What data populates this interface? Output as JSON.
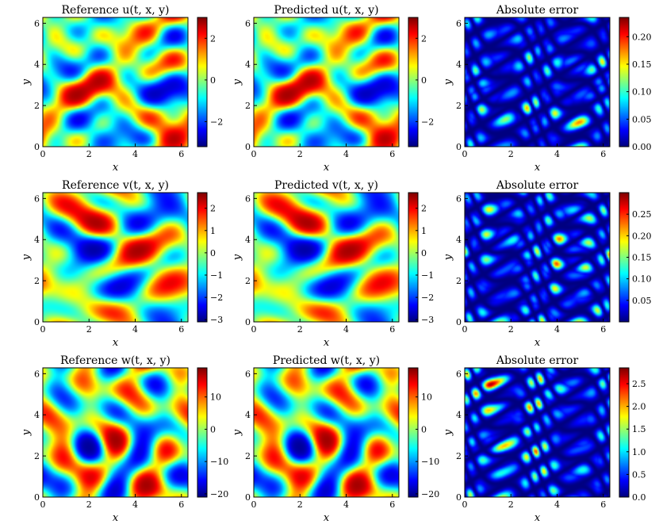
{
  "chart_data": [
    {
      "type": "heatmap",
      "title": "Reference u(t, x, y)",
      "xlabel": "x",
      "ylabel": "y",
      "xlim": [
        0,
        6.283
      ],
      "ylim": [
        0,
        6.283
      ],
      "xticks": [
        "0",
        "2",
        "4",
        "6"
      ],
      "yticks": [
        "0",
        "2",
        "4",
        "6"
      ],
      "colorbar": {
        "min": -3.2,
        "max": 3.0,
        "ticks": [
          "2",
          "0",
          "−2"
        ],
        "tick_values": [
          2,
          0,
          -2
        ]
      }
    },
    {
      "type": "heatmap",
      "title": "Predicted u(t, x, y)",
      "xlabel": "x",
      "ylabel": "y",
      "xlim": [
        0,
        6.283
      ],
      "ylim": [
        0,
        6.283
      ],
      "xticks": [
        "0",
        "2",
        "4",
        "6"
      ],
      "yticks": [
        "0",
        "2",
        "4",
        "6"
      ],
      "colorbar": {
        "min": -3.2,
        "max": 3.0,
        "ticks": [
          "2",
          "0",
          "−2"
        ],
        "tick_values": [
          2,
          0,
          -2
        ]
      }
    },
    {
      "type": "heatmap",
      "title": "Absolute error",
      "xlabel": "x",
      "ylabel": "y",
      "xlim": [
        0,
        6.283
      ],
      "ylim": [
        0,
        6.283
      ],
      "xticks": [
        "0",
        "2",
        "4",
        "6"
      ],
      "yticks": [
        "0",
        "2",
        "4",
        "6"
      ],
      "colorbar": {
        "min": 0,
        "max": 0.235,
        "ticks": [
          "0.20",
          "0.15",
          "0.10",
          "0.05",
          "0.00"
        ],
        "tick_values": [
          0.2,
          0.15,
          0.1,
          0.05,
          0.0
        ]
      }
    },
    {
      "type": "heatmap",
      "title": "Reference v(t, x, y)",
      "xlabel": "x",
      "ylabel": "y",
      "xlim": [
        0,
        6.283
      ],
      "ylim": [
        0,
        6.283
      ],
      "xticks": [
        "0",
        "2",
        "4",
        "6"
      ],
      "yticks": [
        "0",
        "2",
        "4",
        "6"
      ],
      "colorbar": {
        "min": -3.1,
        "max": 2.7,
        "ticks": [
          "2",
          "1",
          "0",
          "−1",
          "−2",
          "−3"
        ],
        "tick_values": [
          2,
          1,
          0,
          -1,
          -2,
          -3
        ]
      }
    },
    {
      "type": "heatmap",
      "title": "Predicted v(t, x, y)",
      "xlabel": "x",
      "ylabel": "y",
      "xlim": [
        0,
        6.283
      ],
      "ylim": [
        0,
        6.283
      ],
      "xticks": [
        "0",
        "2",
        "4",
        "6"
      ],
      "yticks": [
        "0",
        "2",
        "4",
        "6"
      ],
      "colorbar": {
        "min": -3.1,
        "max": 2.7,
        "ticks": [
          "2",
          "1",
          "0",
          "−1",
          "−2",
          "−3"
        ],
        "tick_values": [
          2,
          1,
          0,
          -1,
          -2,
          -3
        ]
      }
    },
    {
      "type": "heatmap",
      "title": "Absolute error",
      "xlabel": "x",
      "ylabel": "y",
      "xlim": [
        0,
        6.283
      ],
      "ylim": [
        0,
        6.283
      ],
      "xticks": [
        "0",
        "2",
        "4",
        "6"
      ],
      "yticks": [
        "0",
        "2",
        "4",
        "6"
      ],
      "colorbar": {
        "min": 0,
        "max": 0.3,
        "ticks": [
          "0.25",
          "0.20",
          "0.15",
          "0.10",
          "0.05"
        ],
        "tick_values": [
          0.25,
          0.2,
          0.15,
          0.1,
          0.05
        ]
      }
    },
    {
      "type": "heatmap",
      "title": "Reference w(t, x, y)",
      "xlabel": "x",
      "ylabel": "y",
      "xlim": [
        0,
        6.283
      ],
      "ylim": [
        0,
        6.283
      ],
      "xticks": [
        "0",
        "2",
        "4",
        "6"
      ],
      "yticks": [
        "0",
        "2",
        "4",
        "6"
      ],
      "colorbar": {
        "min": -21,
        "max": 19,
        "ticks": [
          "10",
          "0",
          "−10",
          "−20"
        ],
        "tick_values": [
          10,
          0,
          -10,
          -20
        ]
      }
    },
    {
      "type": "heatmap",
      "title": "Predicted w(t, x, y)",
      "xlabel": "x",
      "ylabel": "y",
      "xlim": [
        0,
        6.283
      ],
      "ylim": [
        0,
        6.283
      ],
      "xticks": [
        "0",
        "2",
        "4",
        "6"
      ],
      "yticks": [
        "0",
        "2",
        "4",
        "6"
      ],
      "colorbar": {
        "min": -21,
        "max": 19,
        "ticks": [
          "10",
          "0",
          "−10",
          "−20"
        ],
        "tick_values": [
          10,
          0,
          -10,
          -20
        ]
      }
    },
    {
      "type": "heatmap",
      "title": "Absolute error",
      "xlabel": "x",
      "ylabel": "y",
      "xlim": [
        0,
        6.283
      ],
      "ylim": [
        0,
        6.283
      ],
      "xticks": [
        "0",
        "2",
        "4",
        "6"
      ],
      "yticks": [
        "0",
        "2",
        "4",
        "6"
      ],
      "colorbar": {
        "min": 0,
        "max": 2.85,
        "ticks": [
          "2.5",
          "2.0",
          "1.5",
          "1.0",
          "0.5",
          "0.0"
        ],
        "tick_values": [
          2.5,
          2.0,
          1.5,
          1.0,
          0.5,
          0.0
        ]
      }
    }
  ]
}
